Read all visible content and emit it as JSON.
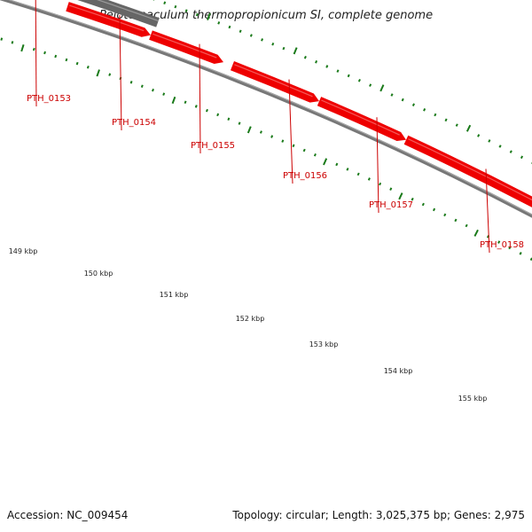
{
  "title": "Pelotomaculum thermopropionicum SI, complete genome",
  "footer": {
    "accession": "Accession: NC_009454",
    "summary": "Topology: circular; Length: 3,025,375 bp; Genes: 2,975"
  },
  "colors": {
    "gene_forward": "#ee0000",
    "gene_reverse": "#666666",
    "backbone": "#777777",
    "tick": "#1a7a1a",
    "gene_label": "#cc0000",
    "label_line": "#cc0000"
  },
  "scale": {
    "unit": "kbp",
    "labels": [
      "149 kbp",
      "150 kbp",
      "151 kbp",
      "152 kbp",
      "153 kbp",
      "154 kbp",
      "155 kbp"
    ]
  },
  "genes": [
    {
      "label": "PTH_0153",
      "strand": "reverse"
    },
    {
      "label": "PTH_0154",
      "strand": "forward"
    },
    {
      "label": "PTH_0155",
      "strand": "forward"
    },
    {
      "label": "PTH_0156",
      "strand": "forward"
    },
    {
      "label": "PTH_0157",
      "strand": "forward"
    },
    {
      "label": "PTH_0158",
      "strand": "forward"
    }
  ]
}
